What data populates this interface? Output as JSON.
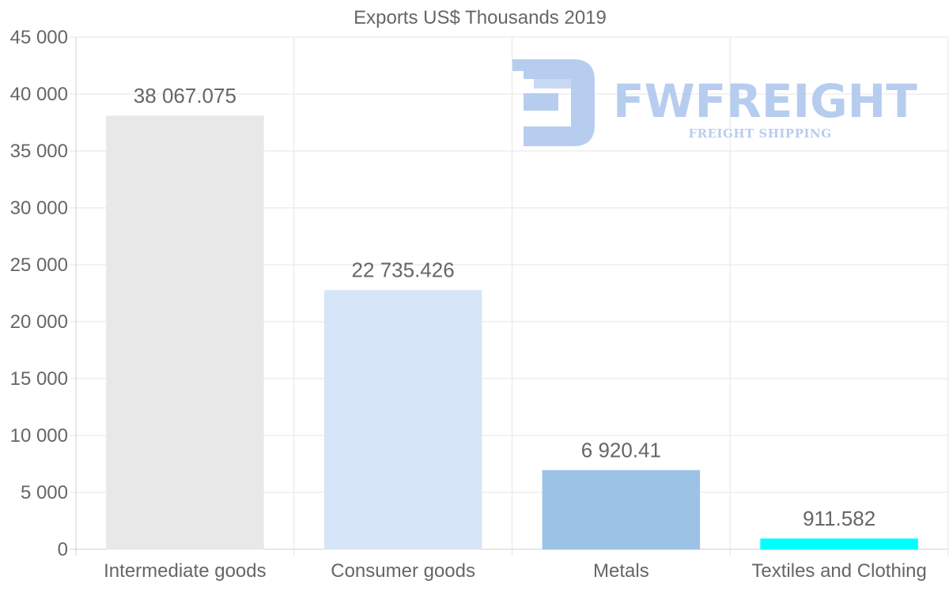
{
  "chart_data": {
    "type": "bar",
    "title": "Exports US$ Thousands 2019",
    "categories": [
      "Intermediate goods",
      "Consumer goods",
      "Metals",
      "Textiles and Clothing"
    ],
    "values": [
      38067.075,
      22735.426,
      6920.41,
      911.582
    ],
    "value_labels": [
      "38 067.075",
      "22 735.426",
      "6 920.41",
      "911.582"
    ],
    "colors": [
      "#e8e8e8",
      "#d6e6f8",
      "#9cc3e6",
      "#00ffff"
    ],
    "ylim": [
      0,
      45000
    ],
    "yticks": [
      0,
      5000,
      10000,
      15000,
      20000,
      25000,
      30000,
      35000,
      40000,
      45000
    ],
    "ytick_labels": [
      "0",
      "5 000",
      "10 000",
      "15 000",
      "20 000",
      "25 000",
      "30 000",
      "35 000",
      "40 000",
      "45 000"
    ],
    "xlabel": "",
    "ylabel": "",
    "grid": true
  },
  "watermark": {
    "brand": "FWFREIGHT",
    "tagline": "FREIGHT SHIPPING",
    "color": "#b4cbef"
  }
}
